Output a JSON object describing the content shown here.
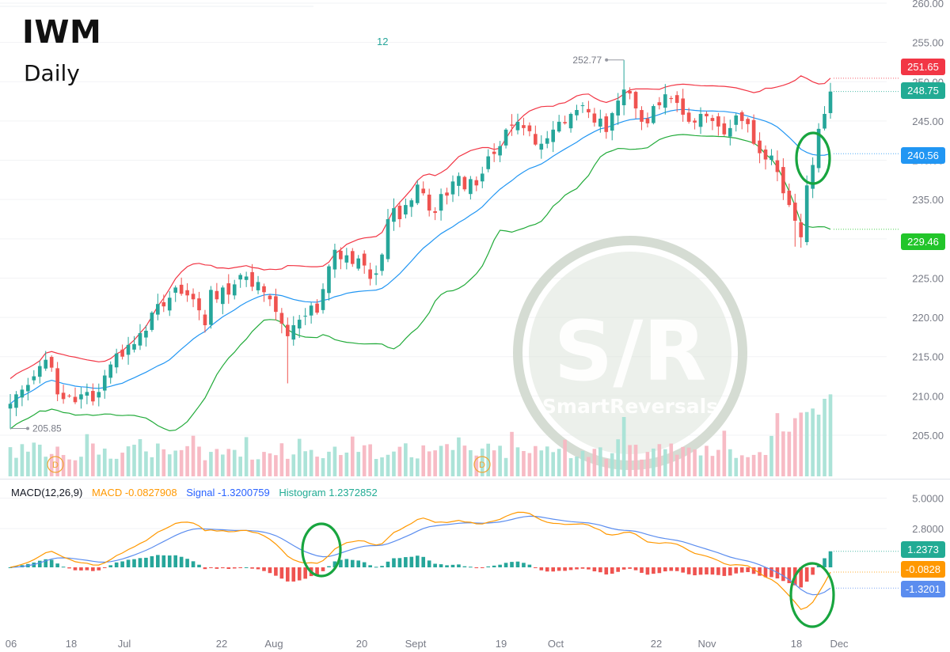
{
  "ticker": "IWM",
  "interval": "Daily",
  "count_label": "12",
  "macd_legend": {
    "name": "MACD(12,26,9)",
    "macd": "MACD -0.0827908",
    "signal": "Signal -1.3200759",
    "histogram": "Histogram 1.2372852"
  },
  "price_tags": {
    "upper_band": "251.65",
    "last_price": "248.75",
    "middle_band": "240.56",
    "lower_band": "229.46"
  },
  "macd_tags": {
    "histogram": "1.2373",
    "macd": "-0.0828",
    "signal": "-1.3201"
  },
  "annotations": {
    "high": "252.77",
    "low": "205.85",
    "dividend_marker": "D"
  },
  "watermark": {
    "logo": "S/R",
    "brand": "SmartReversals"
  },
  "colors": {
    "up": "#26a69a",
    "down": "#ef5350",
    "upper_band": "#f23645",
    "middle_band": "#2196f3",
    "lower_band": "#22ab3a",
    "macd_line": "#ff9800",
    "signal_line": "#2962ff",
    "highlight_circle": "#18a53f",
    "tag_upper": "#f23645",
    "tag_last": "#22ab94",
    "tag_middle": "#2196f3",
    "tag_lower": "#22c52a",
    "tag_macd": "#ff9800",
    "tag_signal": "#5b8def",
    "tag_hist": "#22ab94"
  },
  "chart_data": [
    {
      "type": "candlestick",
      "title": "IWM",
      "interval": "Daily",
      "x_ticks": [
        "06",
        "18",
        "Jul",
        "22",
        "Aug",
        "20",
        "Sept",
        "19",
        "Oct",
        "22",
        "Nov",
        "18",
        "Dec"
      ],
      "y_ticks": [
        "260.00",
        "255.00",
        "250.00",
        "245.00",
        "240.00",
        "235.00",
        "230.00",
        "225.00",
        "220.00",
        "215.00",
        "210.00",
        "205.00"
      ],
      "ylim": [
        205,
        260
      ],
      "close": [
        209.0,
        210.2,
        210.8,
        211.4,
        212.5,
        213.8,
        214.6,
        213.6,
        210.2,
        209.6,
        210.0,
        209.2,
        210.2,
        210.5,
        209.3,
        210.5,
        212.6,
        214.0,
        215.4,
        215.0,
        216.5,
        216.6,
        218.0,
        218.3,
        220.6,
        221.7,
        221.4,
        222.5,
        223.8,
        223.0,
        222.8,
        222.3,
        220.9,
        219.0,
        223.5,
        222.3,
        223.8,
        222.9,
        224.2,
        225.4,
        225.2,
        223.9,
        224.5,
        223.2,
        222.3,
        220.7,
        219.2,
        217.6,
        219.0,
        219.7,
        220.2,
        221.5,
        220.6,
        223.6,
        226.5,
        228.6,
        227.4,
        227.9,
        226.8,
        227.5,
        226.6,
        224.9,
        225.6,
        228.0,
        232.5,
        233.9,
        232.5,
        234.3,
        234.9,
        236.9,
        235.8,
        233.6,
        233.3,
        235.7,
        235.5,
        237.3,
        238.0,
        236.3,
        237.6,
        236.8,
        238.3,
        240.5,
        240.8,
        241.8,
        243.9,
        244.4,
        244.9,
        244.1,
        243.7,
        242.0,
        242.1,
        242.8,
        243.9,
        244.9,
        244.7,
        245.9,
        246.4,
        247.0,
        246.1,
        244.8,
        245.3,
        243.6,
        246.0,
        247.6,
        249.0,
        248.5,
        246.6,
        244.9,
        244.7,
        246.9,
        247.0,
        248.4,
        247.8,
        247.3,
        245.8,
        244.9,
        244.8,
        245.9,
        245.6,
        245.0,
        244.3,
        243.3,
        244.1,
        245.7,
        245.0,
        244.6,
        242.1,
        240.9,
        240.1,
        240.6,
        238.5,
        235.8,
        234.3,
        232.3,
        230.2,
        236.8,
        239.4,
        244.0,
        245.9,
        248.75
      ],
      "volume_note": "daily volume bars shown (unlabeled)"
    },
    {
      "type": "line",
      "title": "MACD(12,26,9)",
      "series": [
        {
          "name": "MACD",
          "last": -0.0827908
        },
        {
          "name": "Signal",
          "last": -1.3200759
        },
        {
          "name": "Histogram",
          "last": 1.2372852
        }
      ],
      "y_ticks": [
        "5.0000",
        "2.8000"
      ],
      "ylim": [
        -6.0,
        5.4
      ]
    }
  ]
}
